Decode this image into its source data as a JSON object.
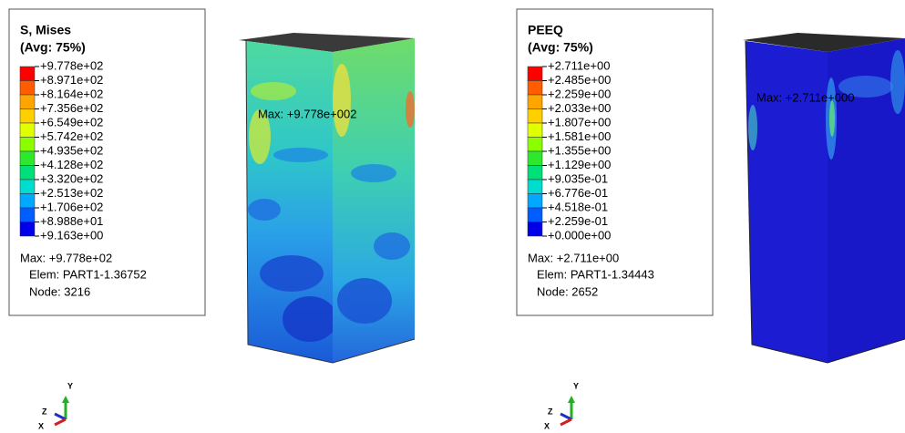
{
  "panels": [
    {
      "legend": {
        "title": "S, Mises",
        "average": "(Avg: 75%)",
        "values": [
          "+9.778e+02",
          "+8.971e+02",
          "+8.164e+02",
          "+7.356e+02",
          "+6.549e+02",
          "+5.742e+02",
          "+4.935e+02",
          "+4.128e+02",
          "+3.320e+02",
          "+2.513e+02",
          "+1.706e+02",
          "+8.988e+01",
          "+9.163e+00"
        ],
        "max": "Max: +9.778e+02",
        "elem": "Elem: PART1-1.36752",
        "node": "Node: 3216"
      },
      "annotation": "Max: +9.778e+002",
      "triad": {
        "y": "Y",
        "z": "Z",
        "x": "X"
      }
    },
    {
      "legend": {
        "title": "PEEQ",
        "average": "(Avg: 75%)",
        "values": [
          "+2.711e+00",
          "+2.485e+00",
          "+2.259e+00",
          "+2.033e+00",
          "+1.807e+00",
          "+1.581e+00",
          "+1.355e+00",
          "+1.129e+00",
          "+9.035e-01",
          "+6.776e-01",
          "+4.518e-01",
          "+2.259e-01",
          "+0.000e+00"
        ],
        "max": "Max: +2.711e+00",
        "elem": "Elem: PART1-1.34443",
        "node": "Node: 2652"
      },
      "annotation": "Max: +2.711e+000",
      "triad": {
        "y": "Y",
        "z": "Z",
        "x": "X"
      }
    }
  ]
}
